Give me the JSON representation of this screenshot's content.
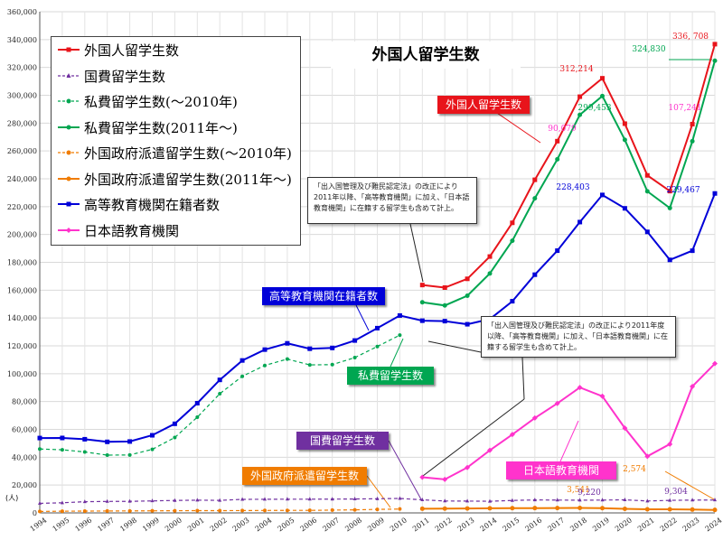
{
  "chart_data": {
    "type": "line",
    "title": "外国人留学生数",
    "unit_label": "(人)",
    "ylim": [
      0,
      360000
    ],
    "y_ticks": [
      "0",
      "20,000",
      "40,000",
      "60,000",
      "80,000",
      "100,000",
      "120,000",
      "140,000",
      "160,000",
      "180,000",
      "200,000",
      "220,000",
      "240,000",
      "260,000",
      "280,000",
      "300,000",
      "320,000",
      "340,000",
      "360,000"
    ],
    "x_ticks": [
      "1994",
      "1995",
      "1996",
      "1997",
      "1998",
      "1999",
      "2000",
      "2001",
      "2002",
      "2003",
      "2004",
      "2005",
      "2006",
      "2007",
      "2008",
      "2009",
      "2010",
      "2011",
      "2012",
      "2013",
      "2014",
      "2015",
      "2016",
      "2017",
      "2018",
      "2019",
      "2020",
      "2021",
      "2022",
      "2023",
      "2024"
    ],
    "grid": true,
    "legend_position": "top-left",
    "series": [
      {
        "name": "外国人留学生数",
        "color": "#e8141b",
        "marker": "square",
        "dash": false,
        "x": [
          2011,
          2012,
          2013,
          2014,
          2015,
          2016,
          2017,
          2018,
          2019,
          2020,
          2021,
          2022,
          2023,
          2024
        ],
        "values": [
          163697,
          161848,
          168145,
          184155,
          208379,
          239287,
          267042,
          298980,
          312214,
          279597,
          242444,
          231146,
          279274,
          336708
        ]
      },
      {
        "name": "国費留学生数",
        "color": "#7030a0",
        "marker": "triangle",
        "dash": true,
        "x": [
          1994,
          1995,
          1996,
          1997,
          1998,
          1999,
          2000,
          2001,
          2002,
          2003,
          2004,
          2005,
          2006,
          2007,
          2008,
          2009,
          2010,
          2011,
          2012,
          2013,
          2014,
          2015,
          2016,
          2017,
          2018,
          2019,
          2020,
          2021,
          2022,
          2023,
          2024
        ],
        "values": [
          6880,
          7252,
          8051,
          8250,
          8323,
          8651,
          8930,
          9173,
          9009,
          9746,
          9804,
          9891,
          9869,
          9923,
          10020,
          10168,
          10349,
          9396,
          8588,
          8529,
          8351,
          8948,
          9317,
          9220,
          9175,
          9220,
          9416,
          8542,
          9012,
          9225,
          9304
        ]
      },
      {
        "name": "私費留学生数(～2010年)",
        "color": "#00a651",
        "marker": "circle",
        "dash": true,
        "x": [
          1994,
          1995,
          1996,
          1997,
          1998,
          1999,
          2000,
          2001,
          2002,
          2003,
          2004,
          2005,
          2006,
          2007,
          2008,
          2009,
          2010
        ],
        "values": [
          45913,
          45319,
          43757,
          41515,
          41630,
          45673,
          54159,
          68772,
          85633,
          98134,
          105928,
          110516,
          106297,
          106512,
          111584,
          119521,
          127743
        ]
      },
      {
        "name": "私費留学生数(2011年～)",
        "color": "#00a651",
        "marker": "circle",
        "dash": false,
        "x": [
          2011,
          2012,
          2013,
          2014,
          2015,
          2016,
          2017,
          2018,
          2019,
          2020,
          2021,
          2022,
          2023,
          2024
        ],
        "values": [
          151300,
          149000,
          156000,
          172000,
          195500,
          226000,
          254000,
          286000,
          299453,
          268000,
          231000,
          219000,
          267000,
          324830
        ]
      },
      {
        "name": "外国政府派遣留学生数(～2010年)",
        "color": "#f07c00",
        "marker": "circle",
        "dash": true,
        "x": [
          1994,
          1995,
          1996,
          1997,
          1998,
          1999,
          2000,
          2001,
          2002,
          2003,
          2004,
          2005,
          2006,
          2007,
          2008,
          2009,
          2010
        ],
        "values": [
          1040,
          1200,
          1282,
          1350,
          1410,
          1511,
          1570,
          1610,
          1650,
          1700,
          1775,
          1800,
          1841,
          2012,
          2200,
          2500,
          2800
        ]
      },
      {
        "name": "外国政府派遣留学生数(2011年～)",
        "color": "#f07c00",
        "marker": "circle",
        "dash": false,
        "x": [
          2011,
          2012,
          2013,
          2014,
          2015,
          2016,
          2017,
          2018,
          2019,
          2020,
          2021,
          2022,
          2023,
          2024
        ],
        "values": [
          3000,
          3100,
          3200,
          3300,
          3400,
          3450,
          3500,
          3541,
          3400,
          2900,
          2600,
          2574,
          2400,
          2150
        ]
      },
      {
        "name": "高等教育機関在籍者数",
        "color": "#0000d8",
        "marker": "square",
        "dash": false,
        "x": [
          1994,
          1995,
          1996,
          1997,
          1998,
          1999,
          2000,
          2001,
          2002,
          2003,
          2004,
          2005,
          2006,
          2007,
          2008,
          2009,
          2010,
          2011,
          2012,
          2013,
          2014,
          2015,
          2016,
          2017,
          2018,
          2019,
          2020,
          2021,
          2022,
          2023,
          2024
        ],
        "values": [
          53787,
          53847,
          52921,
          51047,
          51298,
          55755,
          64011,
          78812,
          95550,
          109508,
          117302,
          121812,
          117927,
          118498,
          123829,
          132720,
          141774,
          138075,
          137756,
          135519,
          139185,
          152062,
          171122,
          188384,
          208901,
          228403,
          218783,
          201877,
          181741,
          188346,
          229467
        ]
      },
      {
        "name": "日本語教育機関",
        "color": "#ff33cc",
        "marker": "diamond",
        "dash": false,
        "x": [
          2011,
          2012,
          2013,
          2014,
          2015,
          2016,
          2017,
          2018,
          2019,
          2020,
          2021,
          2022,
          2023,
          2024
        ],
        "values": [
          25622,
          24092,
          32626,
          44970,
          56317,
          68165,
          78658,
          90079,
          83811,
          60908,
          40660,
          49405,
          90844,
          107241
        ]
      }
    ],
    "data_labels": [
      {
        "text": "336, 708",
        "color": "#e8141b"
      },
      {
        "text": "312,214",
        "color": "#e8141b"
      },
      {
        "text": "324,830",
        "color": "#00a651"
      },
      {
        "text": "299,453",
        "color": "#00a651"
      },
      {
        "text": "228,403",
        "color": "#0000d8"
      },
      {
        "text": "229,467",
        "color": "#0000d8"
      },
      {
        "text": "90,079",
        "color": "#ff33cc"
      },
      {
        "text": "107,241",
        "color": "#ff33cc"
      },
      {
        "text": "3,541",
        "color": "#f07c00"
      },
      {
        "text": "2,574",
        "color": "#f07c00"
      },
      {
        "text": "9,220",
        "color": "#7030a0"
      },
      {
        "text": "9,304",
        "color": "#7030a0"
      }
    ],
    "tags": [
      {
        "text": "外国人留学生数",
        "color": "#e8141b"
      },
      {
        "text": "高等教育機関在籍者数",
        "color": "#0000d8"
      },
      {
        "text": "私費留学生数",
        "color": "#00a651"
      },
      {
        "text": "国費留学生数",
        "color": "#7030a0"
      },
      {
        "text": "外国政府派遣留学生数",
        "color": "#f07c00"
      },
      {
        "text": "日本語教育機関",
        "color": "#ff33cc"
      }
    ],
    "notes": [
      "「出入国管理及び難民認定法」の改正により2011年以降、「高等教育機関」に加え、「日本語教育機関」に在籍する留学生も含めて計上。",
      "「出入国管理及び難民認定法」の改正により2011年度以降、「高等教育機関」に加え、「日本語教育機関」に在籍する留学生も含めて計上。"
    ]
  }
}
